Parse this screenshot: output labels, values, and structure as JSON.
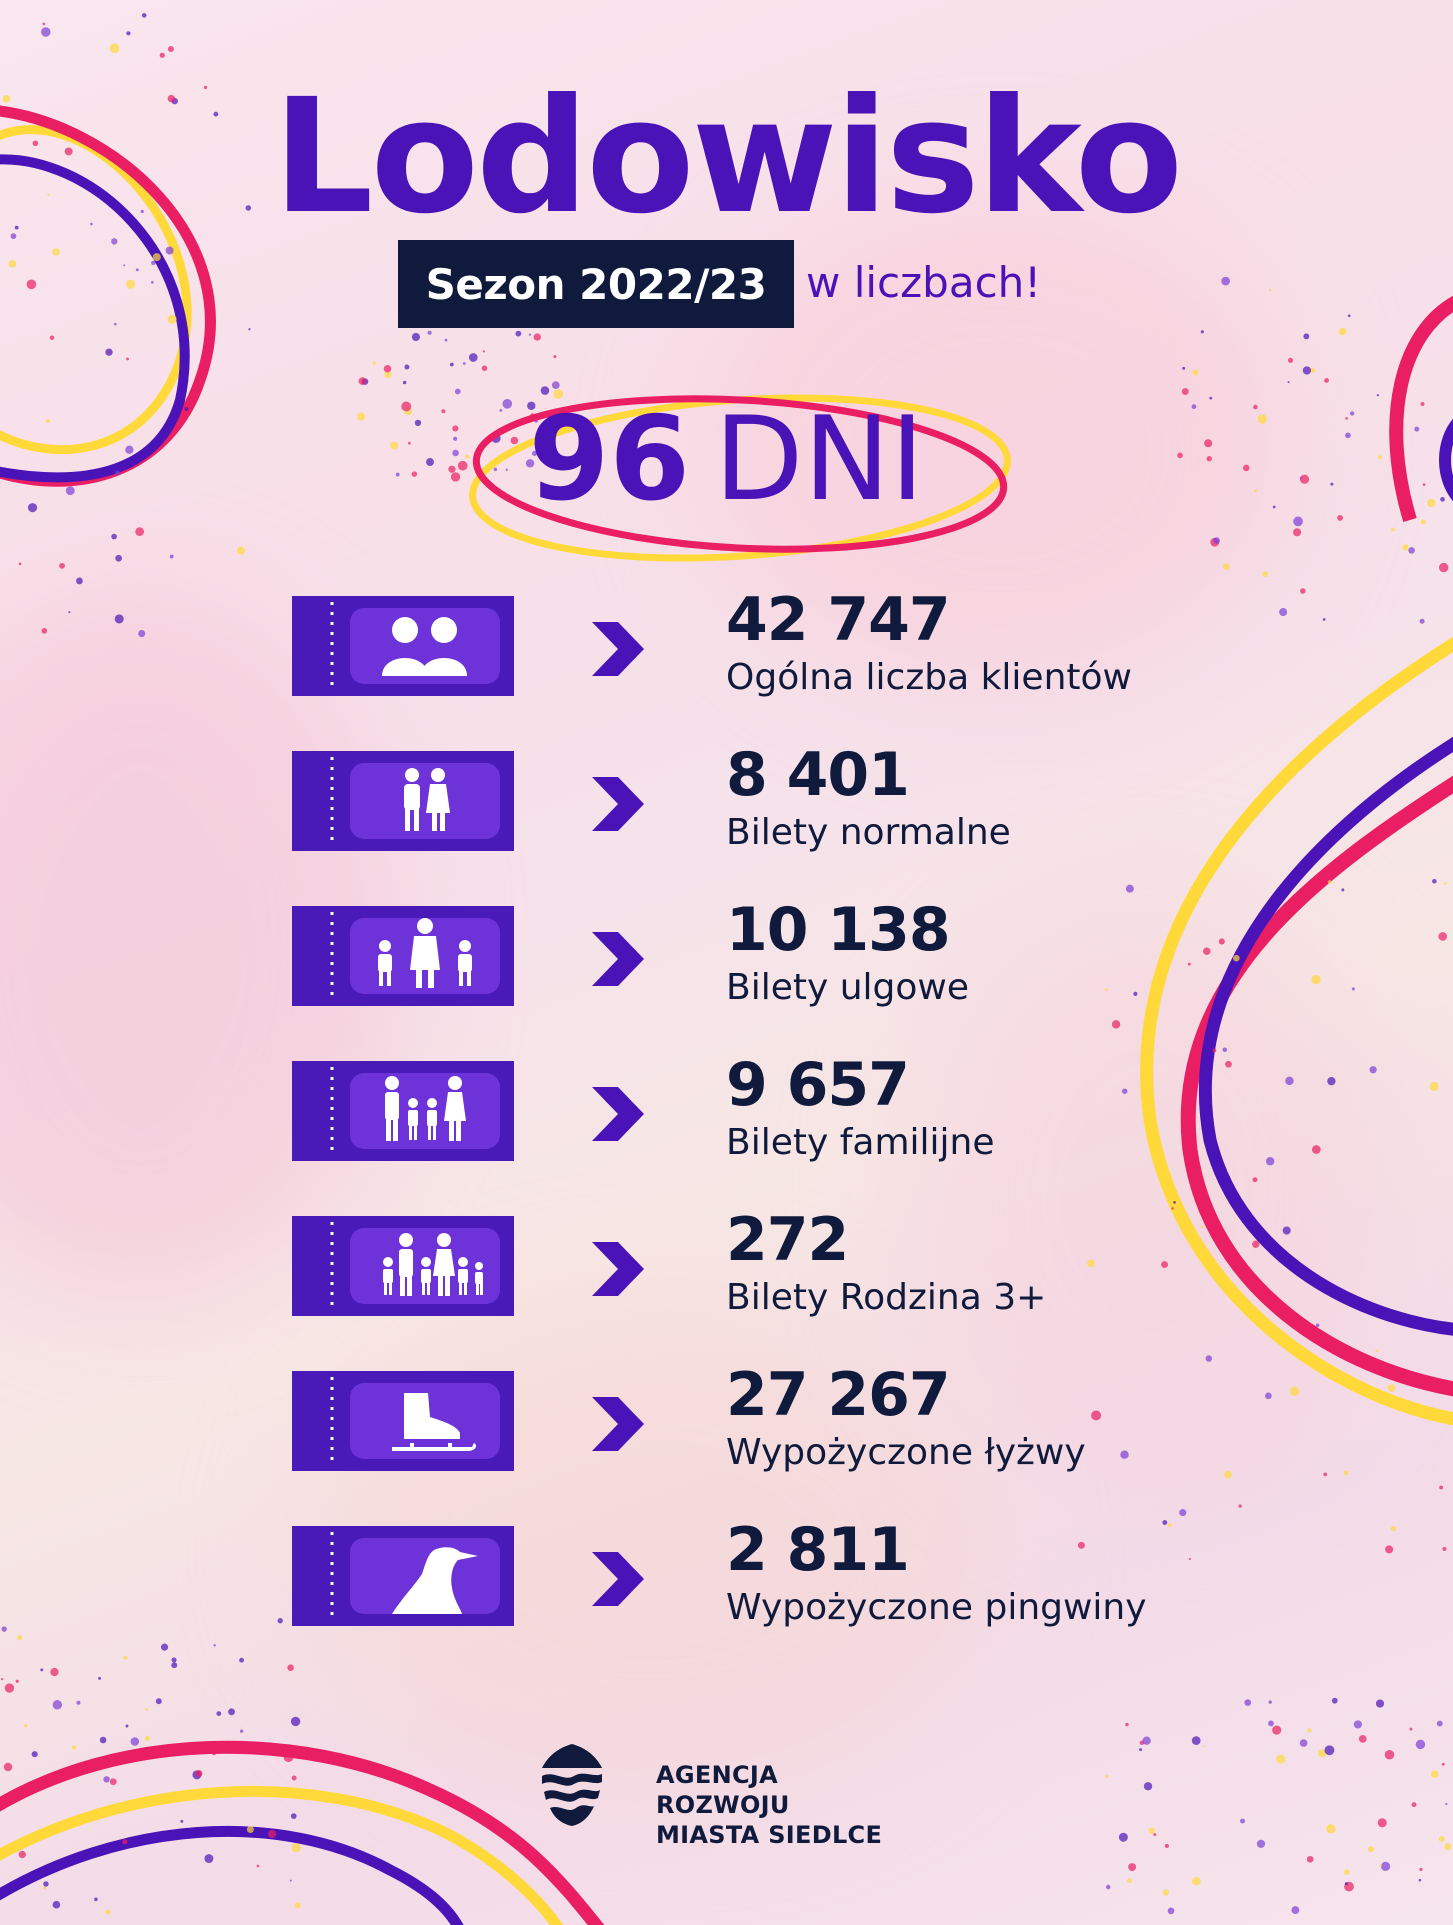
{
  "header": {
    "title": "Lodowisko",
    "season": "Sezon 2022/23",
    "season_suffix": "w liczbach!"
  },
  "days": {
    "value": "96",
    "unit": "DNI"
  },
  "colors": {
    "purple": "#4a13b8",
    "ticket": "#4a1ab8",
    "navy": "#0f1a3c",
    "pink": "#ea1e63",
    "yellow": "#ffd93a"
  },
  "stats": [
    {
      "icon": "two-people-icon",
      "value": "42 747",
      "label": "Ogólna liczba klientów"
    },
    {
      "icon": "couple-icon",
      "value": "8 401",
      "label": "Bilety normalne"
    },
    {
      "icon": "adult-with-children-icon",
      "value": "10 138",
      "label": "Bilety ulgowe"
    },
    {
      "icon": "family-icon",
      "value": "9 657",
      "label": "Bilety familijne"
    },
    {
      "icon": "large-family-icon",
      "value": "272",
      "label": "Bilety Rodzina 3+"
    },
    {
      "icon": "ice-skate-icon",
      "value": "27 267",
      "label": "Wypożyczone łyżwy"
    },
    {
      "icon": "penguin-icon",
      "value": "2 811",
      "label": "Wypożyczone pingwiny"
    }
  ],
  "footer": {
    "logo_line1": "AGENCJA ROZWOJU",
    "logo_line2": "MIASTA SIEDLCE"
  }
}
